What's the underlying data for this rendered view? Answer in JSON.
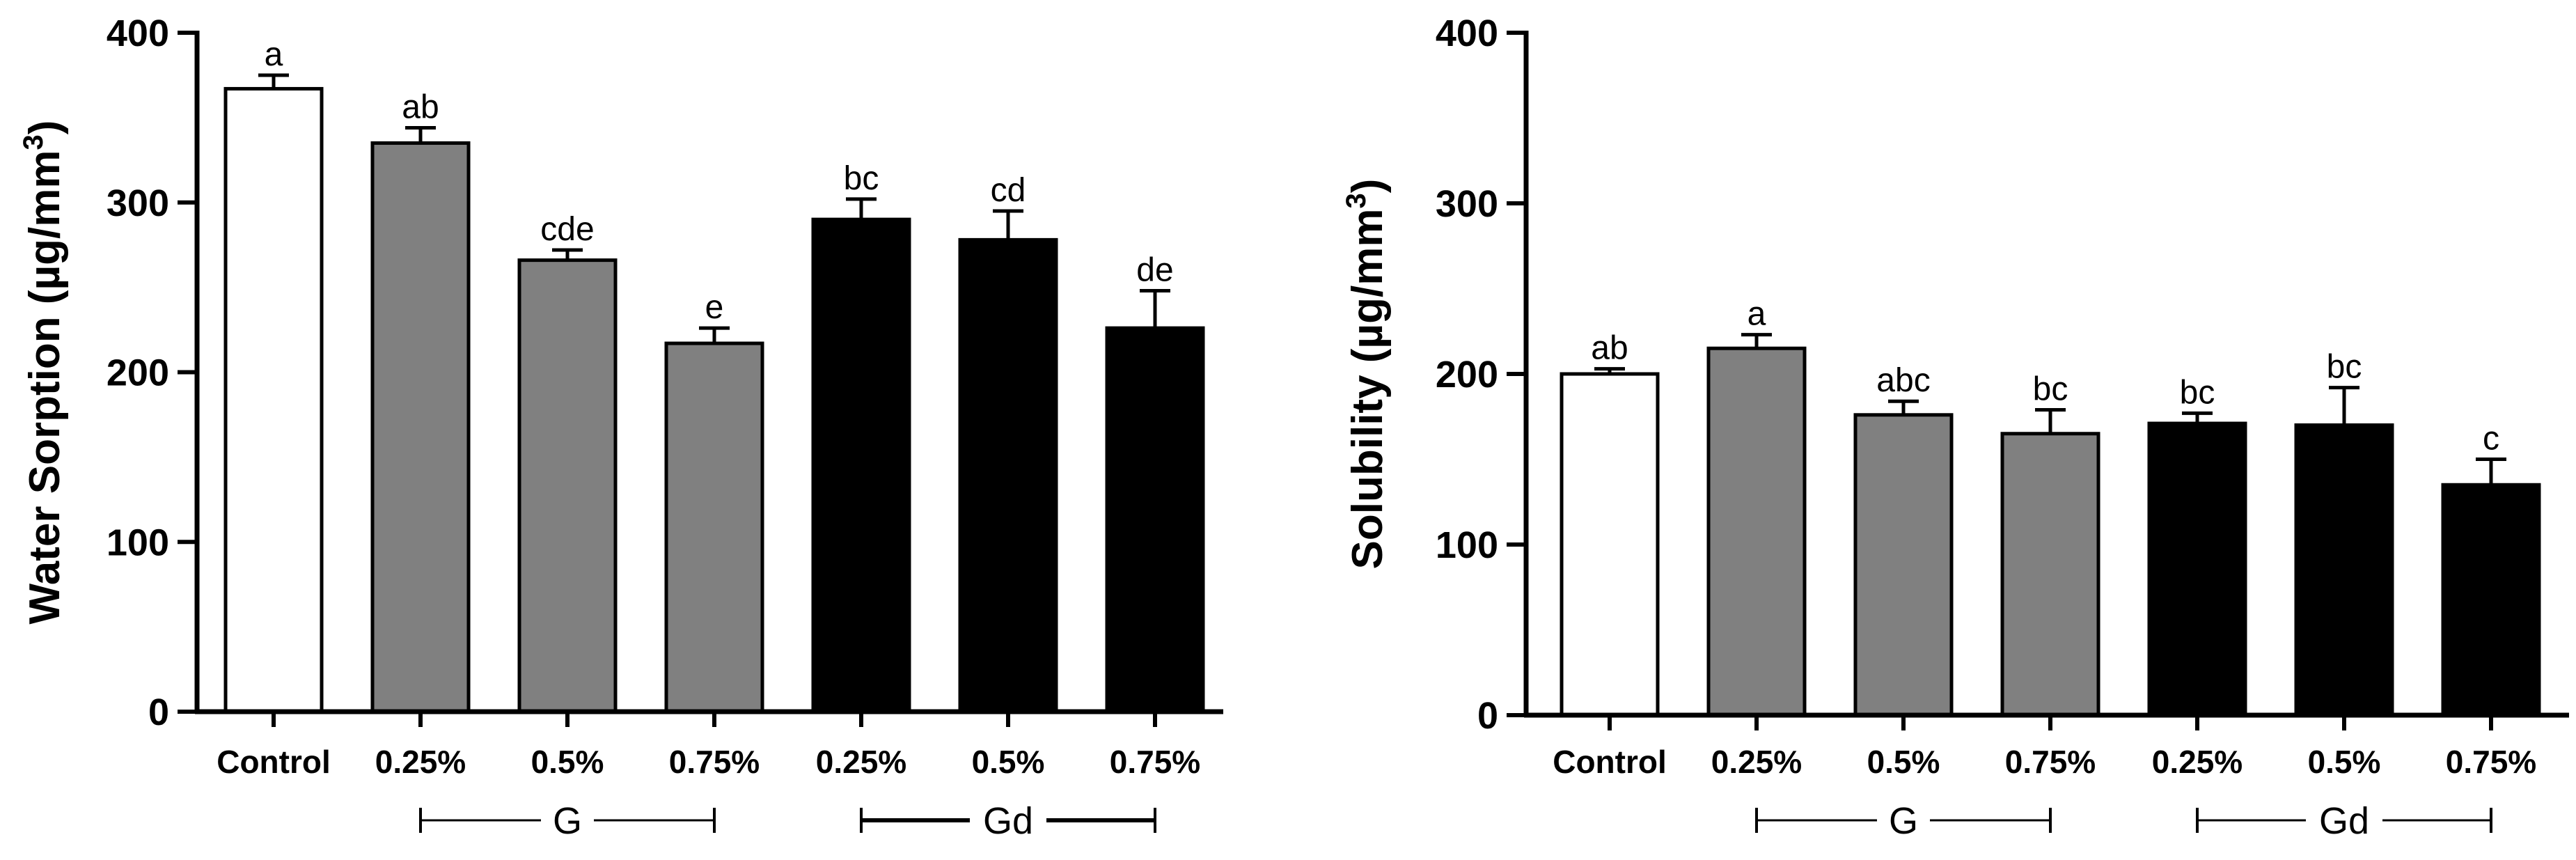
{
  "chart_data": [
    {
      "type": "bar",
      "title": "",
      "xlabel": "",
      "ylabel": "Water Sorption (µg/mm³)",
      "ylabel_main": "Water Sorption (µg/mm",
      "ylabel_sup": "3",
      "ylabel_close": ")",
      "ylim": [
        0,
        400
      ],
      "yticks": [
        0,
        100,
        200,
        300,
        400
      ],
      "ytick_labels": [
        "0",
        "100",
        "200",
        "300",
        "400"
      ],
      "categories": [
        "Control",
        "0.25%",
        "0.5%",
        "0.75%",
        "0.25%",
        "0.5%",
        "0.75%"
      ],
      "values": [
        367,
        335,
        266,
        217,
        290,
        278,
        226
      ],
      "errors": [
        8,
        9,
        6,
        9,
        12,
        17,
        22
      ],
      "letters": [
        "a",
        "ab",
        "cde",
        "e",
        "bc",
        "cd",
        "de"
      ],
      "group_of_bar": [
        "control",
        "G",
        "G",
        "G",
        "Gd",
        "Gd",
        "Gd"
      ],
      "groups": [
        {
          "label": "G",
          "first_bar": 1,
          "last_bar": 3
        },
        {
          "label": "Gd",
          "first_bar": 4,
          "last_bar": 6
        }
      ],
      "colors": {
        "control": "#ffffff",
        "G": "#808080",
        "Gd": "#000000",
        "axis": "#000000"
      }
    },
    {
      "type": "bar",
      "title": "",
      "xlabel": "",
      "ylabel": "Solubility (µg/mm³)",
      "ylabel_main": "Solubility (µg/mm",
      "ylabel_sup": "3",
      "ylabel_close": ")",
      "ylim": [
        0,
        400
      ],
      "yticks": [
        0,
        100,
        200,
        300,
        400
      ],
      "ytick_labels": [
        "0",
        "100",
        "200",
        "300",
        "400"
      ],
      "categories": [
        "Control",
        "0.25%",
        "0.5%",
        "0.75%",
        "0.25%",
        "0.5%",
        "0.75%"
      ],
      "values": [
        200,
        215,
        176,
        165,
        171,
        170,
        135
      ],
      "errors": [
        3,
        8,
        8,
        14,
        6,
        22,
        15
      ],
      "letters": [
        "ab",
        "a",
        "abc",
        "bc",
        "bc",
        "bc",
        "c"
      ],
      "group_of_bar": [
        "control",
        "G",
        "G",
        "G",
        "Gd",
        "Gd",
        "Gd"
      ],
      "groups": [
        {
          "label": "G",
          "first_bar": 1,
          "last_bar": 3
        },
        {
          "label": "Gd",
          "first_bar": 4,
          "last_bar": 6
        }
      ],
      "colors": {
        "control": "#ffffff",
        "G": "#808080",
        "Gd": "#000000",
        "axis": "#000000"
      }
    }
  ]
}
